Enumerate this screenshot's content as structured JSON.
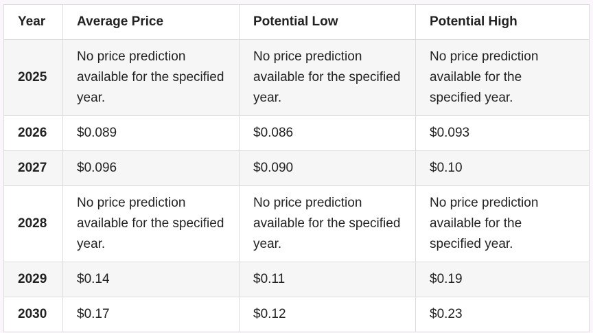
{
  "table": {
    "header": [
      "Year",
      "Average Price",
      "Potential Low",
      "Potential High"
    ],
    "rows": [
      [
        "2025",
        "No price prediction available for the specified year.",
        "No price prediction available for the specified year.",
        "No price prediction available for the specified year."
      ],
      [
        "2026",
        "$0.089",
        "$0.086",
        "$0.093"
      ],
      [
        "2027",
        "$0.096",
        "$0.090",
        "$0.10"
      ],
      [
        "2028",
        "No price prediction available for the specified year.",
        "No price prediction available for the specified year.",
        "No price prediction available for the specified year."
      ],
      [
        "2029",
        "$0.14",
        "$0.11",
        "$0.19"
      ],
      [
        "2030",
        "$0.17",
        "$0.12",
        "$0.23"
      ]
    ]
  }
}
